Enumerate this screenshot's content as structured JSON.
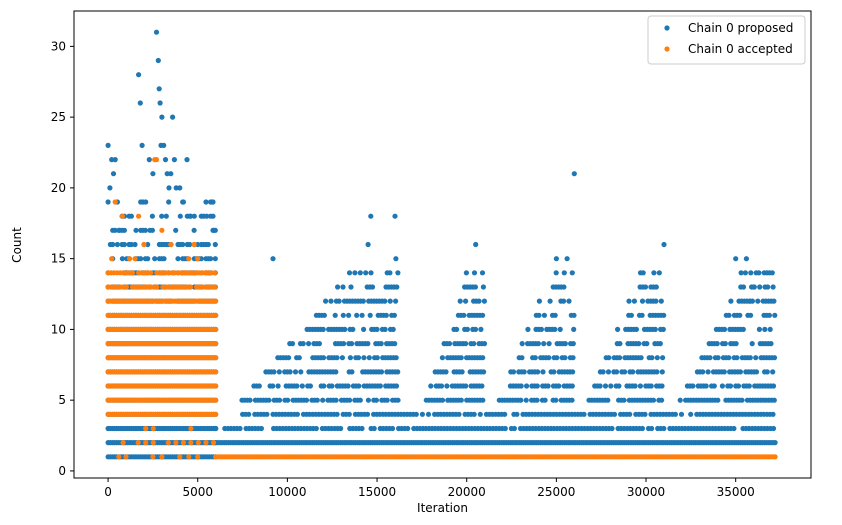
{
  "chart_data": {
    "type": "scatter",
    "xlabel": "Iteration",
    "ylabel": "Count",
    "xlim": [
      -1900,
      39200
    ],
    "ylim": [
      -0.5,
      32.5
    ],
    "xticks": [
      0,
      5000,
      10000,
      15000,
      20000,
      25000,
      30000,
      35000
    ],
    "yticks": [
      0,
      5,
      10,
      15,
      20,
      25,
      30
    ],
    "grid": false,
    "legend_position": "top-right",
    "series": [
      {
        "name": "Chain 0 proposed",
        "color": "#1f77b4",
        "bands": [
          {
            "x": [
              0,
              6000
            ],
            "y": [
              1,
              11
            ],
            "mode": "solid"
          },
          {
            "x": [
              6000,
              37200
            ],
            "y": [
              2,
              2
            ],
            "mode": "solid"
          },
          {
            "x": [
              6000,
              37200
            ],
            "y": [
              3,
              3
            ],
            "mode": "dense"
          },
          {
            "x": [
              7500,
              37200
            ],
            "y": [
              4,
              4
            ],
            "mode": "dense"
          }
        ],
        "cycles": [
          {
            "start": 6800,
            "end": 16200
          },
          {
            "start": 17500,
            "end": 21000
          },
          {
            "start": 21500,
            "end": 26000
          },
          {
            "start": 26500,
            "end": 31000
          },
          {
            "start": 31500,
            "end": 37200
          }
        ],
        "points": [
          [
            0,
            23
          ],
          [
            100,
            20
          ],
          [
            200,
            22
          ],
          [
            300,
            21
          ],
          [
            400,
            22
          ],
          [
            600,
            17
          ],
          [
            800,
            15
          ],
          [
            1000,
            14
          ],
          [
            1300,
            18
          ],
          [
            1500,
            16
          ],
          [
            1700,
            28
          ],
          [
            1800,
            26
          ],
          [
            1900,
            23
          ],
          [
            2100,
            19
          ],
          [
            2300,
            22
          ],
          [
            2500,
            21
          ],
          [
            2700,
            31
          ],
          [
            2800,
            29
          ],
          [
            2850,
            27
          ],
          [
            2900,
            26
          ],
          [
            2950,
            23
          ],
          [
            3000,
            25
          ],
          [
            3100,
            23
          ],
          [
            3200,
            22
          ],
          [
            3300,
            21
          ],
          [
            3400,
            20
          ],
          [
            3500,
            21
          ],
          [
            3600,
            25
          ],
          [
            3700,
            22
          ],
          [
            3800,
            20
          ],
          [
            4000,
            20
          ],
          [
            4200,
            19
          ],
          [
            4400,
            22
          ],
          [
            4600,
            18
          ],
          [
            4800,
            17
          ],
          [
            5000,
            16
          ],
          [
            5500,
            18
          ],
          [
            5800,
            19
          ],
          [
            5900,
            17
          ],
          [
            9200,
            15
          ],
          [
            14500,
            16
          ],
          [
            14650,
            18
          ],
          [
            16000,
            18
          ],
          [
            16050,
            15
          ],
          [
            20500,
            16
          ],
          [
            26000,
            21
          ],
          [
            25000,
            15
          ],
          [
            25600,
            15
          ],
          [
            31000,
            16
          ],
          [
            35000,
            15
          ],
          [
            35300,
            14
          ],
          [
            35600,
            15
          ],
          [
            36000,
            13
          ],
          [
            35800,
            12
          ]
        ]
      },
      {
        "name": "Chain 0 accepted",
        "color": "#ff7f0e",
        "bands": [
          {
            "x": [
              0,
              6000
            ],
            "y": [
              4,
              12
            ],
            "mode": "solid"
          },
          {
            "x": [
              0,
              6000
            ],
            "y": [
              13,
              14
            ],
            "mode": "dense"
          },
          {
            "x": [
              0,
              6000
            ],
            "y": [
              2,
              3
            ],
            "mode": "sparse"
          },
          {
            "x": [
              6000,
              37200
            ],
            "y": [
              1,
              1
            ],
            "mode": "solid"
          }
        ],
        "points": [
          [
            400,
            19
          ],
          [
            1500,
            15
          ],
          [
            1700,
            18
          ],
          [
            2600,
            22
          ],
          [
            2700,
            22
          ],
          [
            3500,
            16
          ],
          [
            4500,
            15
          ],
          [
            4800,
            16
          ],
          [
            5000,
            15
          ],
          [
            2000,
            16
          ],
          [
            3000,
            17
          ],
          [
            1000,
            14
          ],
          [
            1200,
            15
          ],
          [
            200,
            15
          ],
          [
            4200,
            14
          ],
          [
            5200,
            14
          ],
          [
            800,
            18
          ],
          [
            2200,
            13
          ],
          [
            3800,
            13
          ],
          [
            5500,
            14
          ],
          [
            1000,
            1
          ],
          [
            2500,
            1
          ],
          [
            3000,
            1
          ],
          [
            4000,
            1
          ],
          [
            4500,
            1
          ],
          [
            5000,
            1
          ],
          [
            600,
            1
          ]
        ]
      }
    ]
  }
}
